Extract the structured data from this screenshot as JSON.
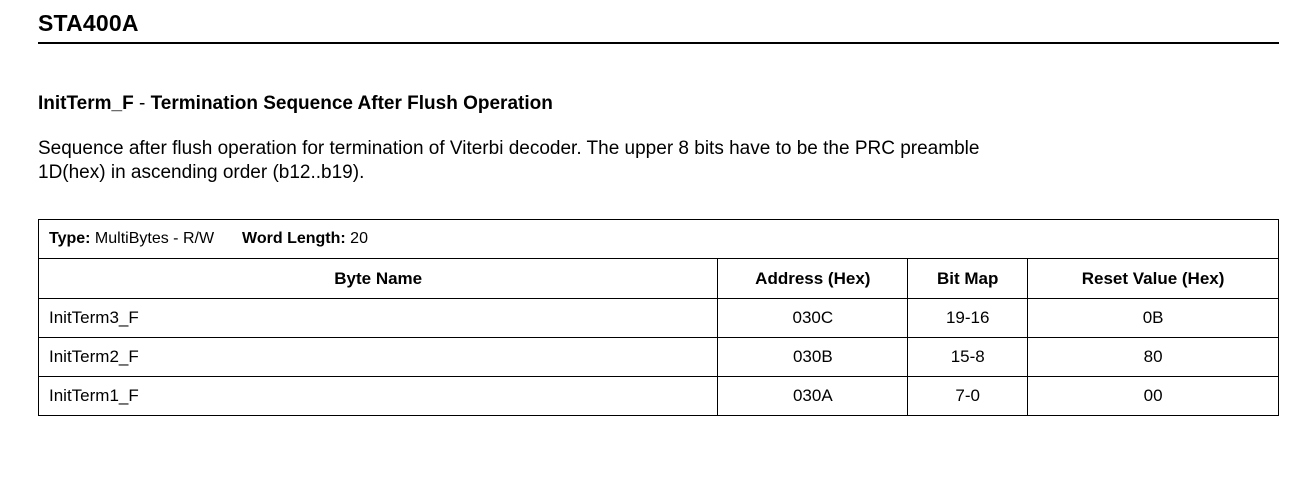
{
  "header": {
    "title": "STA400A"
  },
  "section": {
    "register_name": "InitTerm_F",
    "separator": " - ",
    "register_description": "Termination Sequence After Flush Operation",
    "body_line1": "Sequence after flush operation for termination of Viterbi decoder. The upper 8 bits have to be the PRC preamble",
    "body_line2": "1D(hex) in ascending order (b12..b19)."
  },
  "table": {
    "type_label": "Type:",
    "type_value": " MultiBytes - R/W",
    "word_length_label": "Word Length:",
    "word_length_value": " 20",
    "columns": [
      "Byte Name",
      "Address (Hex)",
      "Bit Map",
      "Reset Value (Hex)"
    ],
    "rows": [
      {
        "byte_name": "InitTerm3_F",
        "address": "030C",
        "bit_map": "19-16",
        "reset_value": "0B"
      },
      {
        "byte_name": "InitTerm2_F",
        "address": "030B",
        "bit_map": "15-8",
        "reset_value": "80"
      },
      {
        "byte_name": "InitTerm1_F",
        "address": "030A",
        "bit_map": "7-0",
        "reset_value": "00"
      }
    ]
  }
}
